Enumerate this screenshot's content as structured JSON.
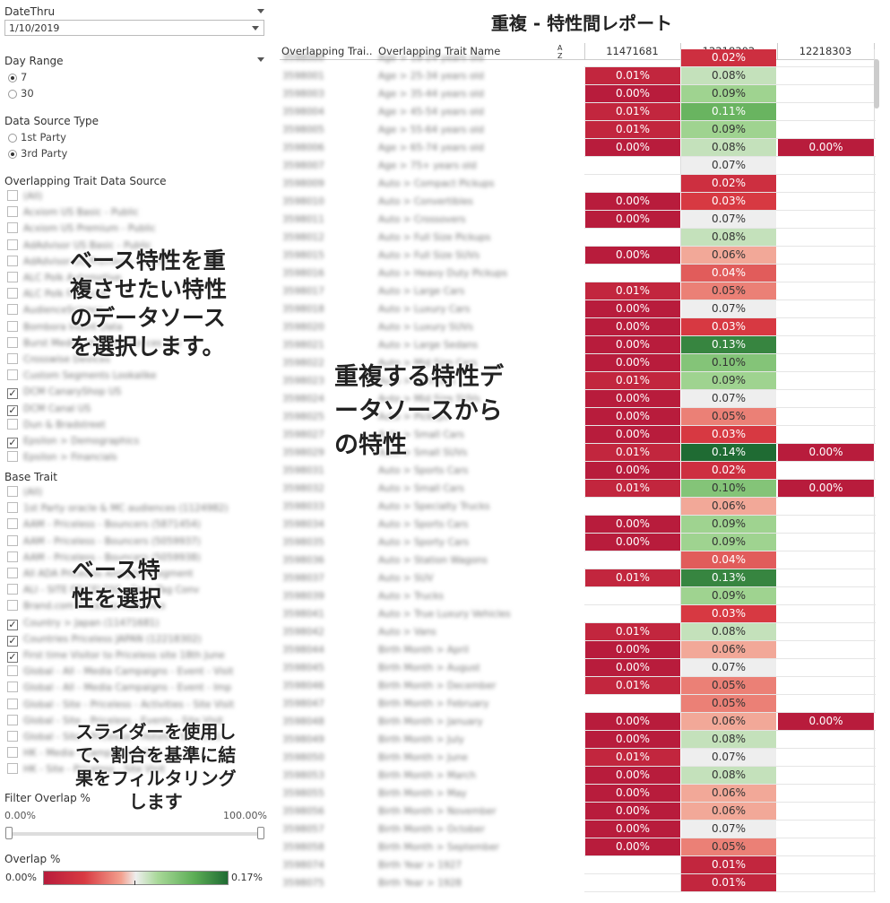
{
  "sidebar": {
    "date_thru": {
      "label": "DateThru",
      "value": "1/10/2019"
    },
    "day_range": {
      "label": "Day Range",
      "options": [
        "7",
        "30"
      ],
      "selected": "7"
    },
    "data_source_type": {
      "label": "Data Source Type",
      "options": [
        "1st Party",
        "3rd Party"
      ],
      "selected": "3rd Party"
    },
    "overlap_source": {
      "label": "Overlapping Trait Data Source",
      "items": [
        {
          "label": "(All)",
          "checked": false
        },
        {
          "label": "Acxiom US Basic - Public",
          "checked": false
        },
        {
          "label": "Acxiom US Premium - Public",
          "checked": false
        },
        {
          "label": "AdAdvisor US Basic - Public",
          "checked": false
        },
        {
          "label": "AdAdvisor US Premium - Public",
          "checked": false
        },
        {
          "label": "ALC Polk Automotive",
          "checked": false
        },
        {
          "label": "ALC Polk Financial",
          "checked": false
        },
        {
          "label": "AudienceScience",
          "checked": false
        },
        {
          "label": "Bombora Intent Data",
          "checked": false
        },
        {
          "label": "Burst Media Intent Audiences You",
          "checked": false
        },
        {
          "label": "Crosswise Devices",
          "checked": false
        },
        {
          "label": "Custom Segments Lookalike",
          "checked": false
        },
        {
          "label": "DCM CanaryShop US",
          "checked": true
        },
        {
          "label": "DCM Canal US",
          "checked": true
        },
        {
          "label": "Dun & Bradstreet",
          "checked": false
        },
        {
          "label": "Epsilon > Demographics",
          "checked": true
        },
        {
          "label": "Epsilon > Financials",
          "checked": false
        }
      ]
    },
    "base_trait": {
      "label": "Base Trait",
      "items": [
        {
          "label": "(All)",
          "checked": false
        },
        {
          "label": "1st Party oracle & MC audiences (1124982)",
          "checked": false
        },
        {
          "label": "AAM - Priceless - Bouncers (5871454)",
          "checked": false
        },
        {
          "label": "AAM - Priceless - Bouncers (5059937)",
          "checked": false
        },
        {
          "label": "AAM - Priceless - Bouncers (5059938)",
          "checked": false
        },
        {
          "label": "All ADA Priceless Analytics Segment",
          "checked": false
        },
        {
          "label": "ALI - SITE PRICELESS - Page Tag Conv",
          "checked": false
        },
        {
          "label": "Brand.com Priceless Audience",
          "checked": false
        },
        {
          "label": "Country > Japan (11471681)",
          "checked": true
        },
        {
          "label": "Countries Priceless JAPAN (12218302)",
          "checked": true
        },
        {
          "label": "First time Visitor to Priceless site 18th June",
          "checked": true
        },
        {
          "label": "Global - All - Media Campaigns - Event - Visit",
          "checked": false
        },
        {
          "label": "Global - All - Media Campaigns - Event - Imp",
          "checked": false
        },
        {
          "label": "Global - Site - Priceless - Activities - Site Visit",
          "checked": false
        },
        {
          "label": "Global - Site - Priceless - Events - Site Visit",
          "checked": false
        },
        {
          "label": "Global - Site - Priceless - Hotels - Site Visit",
          "checked": false
        },
        {
          "label": "HK - Media - Campaign - Visit",
          "checked": false
        },
        {
          "label": "HK - Site - Priceless - Site Visit",
          "checked": false
        }
      ]
    },
    "filter_overlap": {
      "label": "Filter Overlap %",
      "min_label": "0.00%",
      "max_label": "100.00%",
      "range": [
        0,
        1
      ]
    },
    "overlap_legend": {
      "label": "Overlap %",
      "min_label": "0.00%",
      "max_label": "0.17%"
    },
    "annotations": [
      "ベース特性を重\n複させたい特性\nのデータソース\nを選択します。",
      "ベース特\n性を選択",
      "スライダーを使用し\nて、割合を基準に結\n果をフィルタリング\nします"
    ]
  },
  "report": {
    "title": "重複 - 特性間レポート",
    "headers": {
      "id": "Overlapping Trai..",
      "name": "Overlapping Trait Name",
      "sort_icon": "sort-az-icon",
      "cols": [
        "11471681",
        "12218302",
        "12218303"
      ]
    },
    "center_annotation": "重複する特性デ\nータソースから\nの特性",
    "legend_colors": {
      "low": "#b81c3c",
      "mid": "#eeeeee",
      "high": "#1f6b33"
    },
    "rows": [
      {
        "id": "3598000",
        "name": "Age > 18-24 years old",
        "v": [
          null,
          0.02,
          null
        ]
      },
      {
        "id": "3598001",
        "name": "Age > 25-34 years old",
        "v": [
          0.01,
          0.08,
          null
        ]
      },
      {
        "id": "3598003",
        "name": "Age > 35-44 years old",
        "v": [
          0.0,
          0.09,
          null
        ]
      },
      {
        "id": "3598004",
        "name": "Age > 45-54 years old",
        "v": [
          0.01,
          0.11,
          null
        ]
      },
      {
        "id": "3598005",
        "name": "Age > 55-64 years old",
        "v": [
          0.01,
          0.09,
          null
        ]
      },
      {
        "id": "3598006",
        "name": "Age > 65-74 years old",
        "v": [
          0.0,
          0.08,
          0.0
        ]
      },
      {
        "id": "3598007",
        "name": "Age > 75+ years old",
        "v": [
          null,
          0.07,
          null
        ]
      },
      {
        "id": "3598009",
        "name": "Auto > Compact Pickups",
        "v": [
          null,
          0.02,
          null
        ]
      },
      {
        "id": "3598010",
        "name": "Auto > Convertibles",
        "v": [
          0.0,
          0.03,
          null
        ]
      },
      {
        "id": "3598011",
        "name": "Auto > Crossovers",
        "v": [
          0.0,
          0.07,
          null
        ]
      },
      {
        "id": "3598012",
        "name": "Auto > Full Size Pickups",
        "v": [
          null,
          0.08,
          null
        ]
      },
      {
        "id": "3598015",
        "name": "Auto > Full Size SUVs",
        "v": [
          0.0,
          0.06,
          null
        ]
      },
      {
        "id": "3598016",
        "name": "Auto > Heavy Duty Pickups",
        "v": [
          null,
          0.04,
          null
        ]
      },
      {
        "id": "3598017",
        "name": "Auto > Large Cars",
        "v": [
          0.01,
          0.05,
          null
        ]
      },
      {
        "id": "3598018",
        "name": "Auto > Luxury Cars",
        "v": [
          0.0,
          0.07,
          null
        ]
      },
      {
        "id": "3598020",
        "name": "Auto > Luxury SUVs",
        "v": [
          0.0,
          0.03,
          null
        ]
      },
      {
        "id": "3598021",
        "name": "Auto > Large Sedans",
        "v": [
          0.0,
          0.13,
          null
        ]
      },
      {
        "id": "3598022",
        "name": "Auto > Mid Size Cars",
        "v": [
          0.0,
          0.1,
          null
        ]
      },
      {
        "id": "3598023",
        "name": "Auto > Minivans",
        "v": [
          0.01,
          0.09,
          null
        ]
      },
      {
        "id": "3598024",
        "name": "Auto > Mid Size SUVs",
        "v": [
          0.0,
          0.07,
          null
        ]
      },
      {
        "id": "3598025",
        "name": "Auto > Pickups",
        "v": [
          0.0,
          0.05,
          null
        ]
      },
      {
        "id": "3598027",
        "name": "Auto > Small Cars",
        "v": [
          0.0,
          0.03,
          null
        ]
      },
      {
        "id": "3598029",
        "name": "Auto > Small SUVs",
        "v": [
          0.01,
          0.14,
          0.0
        ]
      },
      {
        "id": "3598031",
        "name": "Auto > Sports Cars",
        "v": [
          0.0,
          0.02,
          null
        ]
      },
      {
        "id": "3598032",
        "name": "Auto > Small Cars",
        "v": [
          0.01,
          0.1,
          0.0
        ]
      },
      {
        "id": "3598033",
        "name": "Auto > Specialty Trucks",
        "v": [
          null,
          0.06,
          null
        ]
      },
      {
        "id": "3598034",
        "name": "Auto > Sports Cars",
        "v": [
          0.0,
          0.09,
          null
        ]
      },
      {
        "id": "3598035",
        "name": "Auto > Sporty Cars",
        "v": [
          0.0,
          0.09,
          null
        ]
      },
      {
        "id": "3598036",
        "name": "Auto > Station Wagons",
        "v": [
          null,
          0.04,
          null
        ]
      },
      {
        "id": "3598037",
        "name": "Auto > SUV",
        "v": [
          0.01,
          0.13,
          null
        ]
      },
      {
        "id": "3598039",
        "name": "Auto > Trucks",
        "v": [
          null,
          0.09,
          null
        ]
      },
      {
        "id": "3598041",
        "name": "Auto > True Luxury Vehicles",
        "v": [
          null,
          0.03,
          null
        ]
      },
      {
        "id": "3598042",
        "name": "Auto > Vans",
        "v": [
          0.01,
          0.08,
          null
        ]
      },
      {
        "id": "3598044",
        "name": "Birth Month > April",
        "v": [
          0.0,
          0.06,
          null
        ]
      },
      {
        "id": "3598045",
        "name": "Birth Month > August",
        "v": [
          0.0,
          0.07,
          null
        ]
      },
      {
        "id": "3598046",
        "name": "Birth Month > December",
        "v": [
          0.01,
          0.05,
          null
        ]
      },
      {
        "id": "3598047",
        "name": "Birth Month > February",
        "v": [
          null,
          0.05,
          null
        ]
      },
      {
        "id": "3598048",
        "name": "Birth Month > January",
        "v": [
          0.0,
          0.06,
          0.0
        ]
      },
      {
        "id": "3598049",
        "name": "Birth Month > July",
        "v": [
          0.0,
          0.08,
          null
        ]
      },
      {
        "id": "3598050",
        "name": "Birth Month > June",
        "v": [
          0.01,
          0.07,
          null
        ]
      },
      {
        "id": "3598053",
        "name": "Birth Month > March",
        "v": [
          0.0,
          0.08,
          null
        ]
      },
      {
        "id": "3598055",
        "name": "Birth Month > May",
        "v": [
          0.0,
          0.06,
          null
        ]
      },
      {
        "id": "3598056",
        "name": "Birth Month > November",
        "v": [
          0.0,
          0.06,
          null
        ]
      },
      {
        "id": "3598057",
        "name": "Birth Month > October",
        "v": [
          0.0,
          0.07,
          null
        ]
      },
      {
        "id": "3598058",
        "name": "Birth Month > September",
        "v": [
          0.0,
          0.05,
          null
        ]
      },
      {
        "id": "3598074",
        "name": "Birth Year > 1927",
        "v": [
          null,
          0.01,
          null
        ]
      },
      {
        "id": "3598075",
        "name": "Birth Year > 1928",
        "v": [
          null,
          0.01,
          null
        ]
      }
    ]
  }
}
